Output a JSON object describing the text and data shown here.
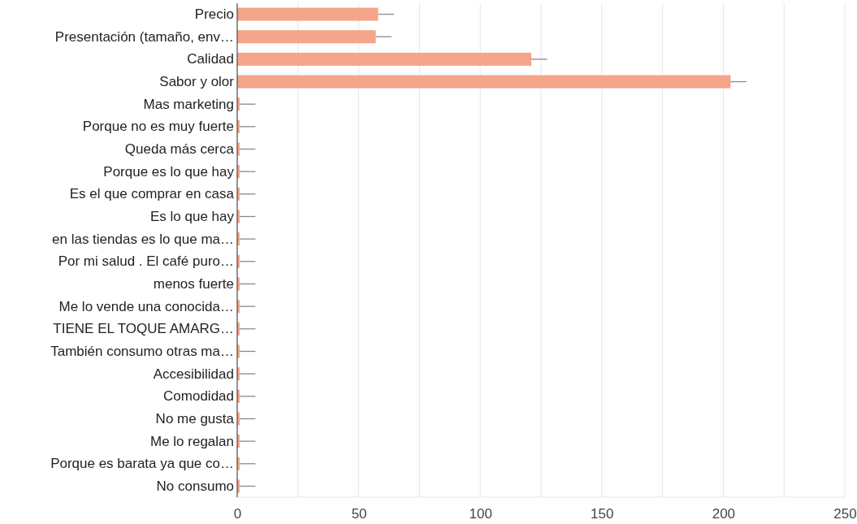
{
  "chart_data": {
    "type": "bar",
    "orientation": "horizontal",
    "categories": [
      "Precio",
      "Presentación (tamaño, env…",
      "Calidad",
      "Sabor y olor",
      "Mas marketing",
      "Porque no es muy fuerte",
      "Queda más cerca",
      "Porque es lo que hay",
      "Es el que comprar en casa",
      "Es lo que hay",
      "en las tiendas es lo que ma…",
      "Por mi salud . El café puro…",
      "menos fuerte",
      "Me lo vende una conocida…",
      "TIENE EL TOQUE AMARG…",
      "También consumo otras ma…",
      "Accesibilidad",
      "Comodidad",
      "No me gusta",
      "Me lo regalan",
      "Porque es barata ya que co…",
      "No consumo"
    ],
    "values": [
      58,
      57,
      121,
      203,
      1,
      1,
      1,
      1,
      1,
      1,
      1,
      1,
      1,
      1,
      1,
      1,
      1,
      1,
      1,
      1,
      1,
      1
    ],
    "errors": [
      [
        58,
        64.5
      ],
      [
        57,
        63.5
      ],
      [
        121,
        127.5
      ],
      [
        203,
        209.5
      ],
      [
        1,
        7.5
      ],
      [
        1,
        7.5
      ],
      [
        1,
        7.5
      ],
      [
        1,
        7.5
      ],
      [
        1,
        7.5
      ],
      [
        1,
        7.5
      ],
      [
        1,
        7.5
      ],
      [
        1,
        7.5
      ],
      [
        1,
        7.5
      ],
      [
        1,
        7.5
      ],
      [
        1,
        7.5
      ],
      [
        1,
        7.5
      ],
      [
        1,
        7.5
      ],
      [
        1,
        7.5
      ],
      [
        1,
        7.5
      ],
      [
        1,
        7.5
      ],
      [
        1,
        7.5
      ],
      [
        1,
        7.5
      ]
    ],
    "color": "#f4a58a",
    "xlim": [
      0,
      250
    ],
    "xticks": [
      0,
      {
        "value": 25,
        "label": null
      },
      50,
      {
        "value": 75,
        "label": null
      },
      100,
      {
        "value": 125,
        "label": null
      },
      150,
      {
        "value": 175,
        "label": null
      },
      200,
      {
        "value": 225,
        "label": null
      },
      250
    ],
    "grid": "x"
  }
}
